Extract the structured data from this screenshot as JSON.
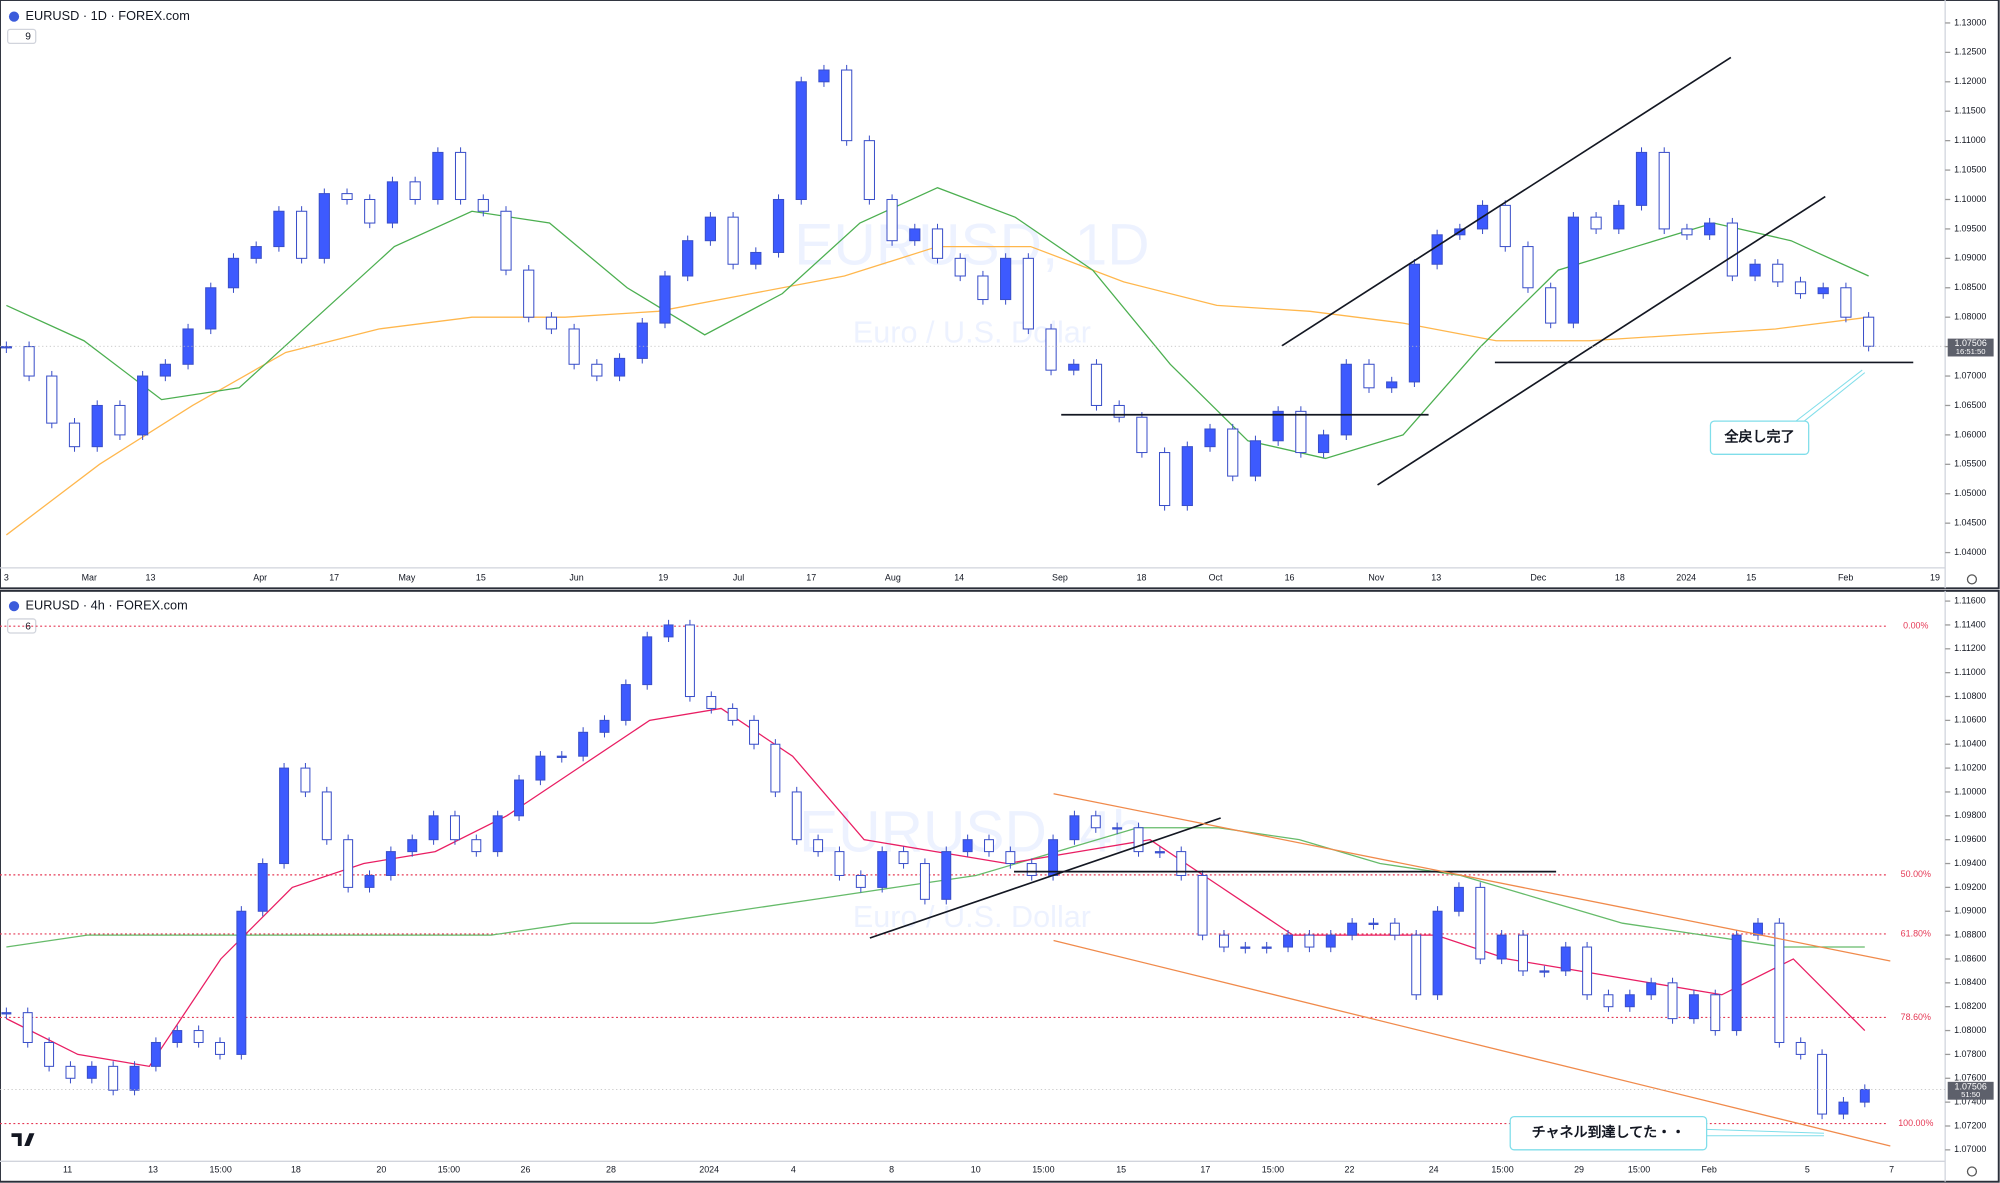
{
  "chart_data": [
    {
      "type": "candlestick",
      "header": "EURUSD · 1D · FOREX.com",
      "indicator_count": "9",
      "watermark": "EURUSD, 1D",
      "watermark_sub": "Euro / U.S. Dollar",
      "closes": [
        1.075,
        1.07,
        1.062,
        1.058,
        1.065,
        1.06,
        1.07,
        1.072,
        1.078,
        1.085,
        1.09,
        1.092,
        1.098,
        1.09,
        1.101,
        1.1,
        1.096,
        1.103,
        1.1,
        1.108,
        1.1,
        1.098,
        1.088,
        1.08,
        1.078,
        1.072,
        1.07,
        1.073,
        1.079,
        1.087,
        1.093,
        1.097,
        1.089,
        1.091,
        1.1,
        1.12,
        1.122,
        1.11,
        1.1,
        1.093,
        1.095,
        1.09,
        1.087,
        1.083,
        1.09,
        1.078,
        1.071,
        1.072,
        1.065,
        1.063,
        1.057,
        1.048,
        1.058,
        1.061,
        1.053,
        1.059,
        1.064,
        1.057,
        1.06,
        1.072,
        1.068,
        1.069,
        1.089,
        1.094,
        1.095,
        1.099,
        1.092,
        1.085,
        1.079,
        1.097,
        1.095,
        1.099,
        1.108,
        1.095,
        1.094,
        1.096,
        1.087,
        1.089,
        1.086,
        1.084,
        1.085,
        1.08,
        1.07506
      ],
      "ma_fast": [
        1.082,
        1.076,
        1.066,
        1.068,
        1.08,
        1.092,
        1.098,
        1.096,
        1.085,
        1.077,
        1.084,
        1.096,
        1.102,
        1.097,
        1.088,
        1.072,
        1.059,
        1.056,
        1.06,
        1.075,
        1.088,
        1.092,
        1.096,
        1.093,
        1.087
      ],
      "ma_slow": [
        1.043,
        1.055,
        1.065,
        1.074,
        1.078,
        1.08,
        1.08,
        1.081,
        1.084,
        1.087,
        1.092,
        1.092,
        1.086,
        1.082,
        1.081,
        1.079,
        1.076,
        1.076,
        1.077,
        1.078,
        1.08
      ],
      "up_color": "#3d5afe",
      "down_color": "#ffffff",
      "ma_fast_color": "#4caf50",
      "ma_slow_color": "#ffb74d",
      "ylim": [
        1.0374,
        1.1339
      ],
      "yticks": [
        {
          "value": 1.04,
          "label": "1.04000"
        },
        {
          "value": 1.045,
          "label": "1.04500"
        },
        {
          "value": 1.05,
          "label": "1.05000"
        },
        {
          "value": 1.055,
          "label": "1.05500"
        },
        {
          "value": 1.06,
          "label": "1.06000"
        },
        {
          "value": 1.065,
          "label": "1.06500"
        },
        {
          "value": 1.07,
          "label": "1.07000"
        },
        {
          "value": 1.075,
          "label": "1.07500"
        },
        {
          "value": 1.08,
          "label": "1.08000"
        },
        {
          "value": 1.085,
          "label": "1.08500"
        },
        {
          "value": 1.09,
          "label": "1.09000"
        },
        {
          "value": 1.095,
          "label": "1.09500"
        },
        {
          "value": 1.1,
          "label": "1.10000"
        },
        {
          "value": 1.105,
          "label": "1.10500"
        },
        {
          "value": 1.11,
          "label": "1.11000"
        },
        {
          "value": 1.115,
          "label": "1.11500"
        },
        {
          "value": 1.12,
          "label": "1.12000"
        },
        {
          "value": 1.125,
          "label": "1.12500"
        },
        {
          "value": 1.13,
          "label": "1.13000"
        }
      ],
      "xticks": [
        "3",
        "Mar",
        "13",
        "Apr",
        "17",
        "May",
        "15",
        "Jun",
        "19",
        "Jul",
        "17",
        "Aug",
        "14",
        "Sep",
        "18",
        "Oct",
        "16",
        "Nov",
        "13",
        "Dec",
        "18",
        "2024",
        "15",
        "Feb",
        "19"
      ],
      "last_price": 1.07506,
      "countdown": "16:51:50",
      "annotation": "全戻し完了"
    },
    {
      "type": "candlestick",
      "header": "EURUSD · 4h · FOREX.com",
      "indicator_count": "6",
      "watermark": "EURUSD, 4h",
      "watermark_sub": "Euro / U.S. Dollar",
      "closes": [
        1.0815,
        1.079,
        1.077,
        1.076,
        1.077,
        1.075,
        1.077,
        1.079,
        1.08,
        1.079,
        1.078,
        1.09,
        1.094,
        1.102,
        1.1,
        1.096,
        1.092,
        1.093,
        1.095,
        1.096,
        1.098,
        1.096,
        1.095,
        1.098,
        1.101,
        1.103,
        1.103,
        1.105,
        1.106,
        1.109,
        1.113,
        1.114,
        1.108,
        1.107,
        1.106,
        1.104,
        1.1,
        1.096,
        1.095,
        1.093,
        1.092,
        1.095,
        1.094,
        1.091,
        1.095,
        1.096,
        1.095,
        1.094,
        1.093,
        1.096,
        1.098,
        1.097,
        1.097,
        1.095,
        1.095,
        1.093,
        1.088,
        1.087,
        1.087,
        1.087,
        1.088,
        1.087,
        1.088,
        1.089,
        1.089,
        1.088,
        1.083,
        1.09,
        1.092,
        1.086,
        1.088,
        1.085,
        1.085,
        1.087,
        1.083,
        1.082,
        1.083,
        1.084,
        1.081,
        1.083,
        1.08,
        1.088,
        1.089,
        1.079,
        1.078,
        1.073,
        1.074,
        1.07506
      ],
      "ma_fast": [
        1.081,
        1.078,
        1.077,
        1.086,
        1.092,
        1.094,
        1.095,
        1.098,
        1.102,
        1.106,
        1.107,
        1.103,
        1.096,
        1.095,
        1.094,
        1.095,
        1.096,
        1.092,
        1.088,
        1.088,
        1.088,
        1.086,
        1.085,
        1.084,
        1.083,
        1.086,
        1.08
      ],
      "ma_slow": [
        1.087,
        1.088,
        1.088,
        1.088,
        1.088,
        1.088,
        1.088,
        1.089,
        1.089,
        1.09,
        1.091,
        1.092,
        1.093,
        1.095,
        1.097,
        1.097,
        1.096,
        1.094,
        1.093,
        1.091,
        1.089,
        1.088,
        1.087,
        1.087
      ],
      "up_color": "#3d5afe",
      "down_color": "#ffffff",
      "ma_fast_color": "#e91e63",
      "ma_slow_color": "#66bb6a",
      "ylim": [
        1.06904,
        1.11675
      ],
      "yticks": [
        {
          "value": 1.07,
          "label": "1.07000"
        },
        {
          "value": 1.072,
          "label": "1.07200"
        },
        {
          "value": 1.074,
          "label": "1.07400"
        },
        {
          "value": 1.076,
          "label": "1.07600"
        },
        {
          "value": 1.078,
          "label": "1.07800"
        },
        {
          "value": 1.08,
          "label": "1.08000"
        },
        {
          "value": 1.082,
          "label": "1.08200"
        },
        {
          "value": 1.084,
          "label": "1.08400"
        },
        {
          "value": 1.086,
          "label": "1.08600"
        },
        {
          "value": 1.088,
          "label": "1.08800"
        },
        {
          "value": 1.09,
          "label": "1.09000"
        },
        {
          "value": 1.092,
          "label": "1.09200"
        },
        {
          "value": 1.094,
          "label": "1.09400"
        },
        {
          "value": 1.096,
          "label": "1.09600"
        },
        {
          "value": 1.098,
          "label": "1.09800"
        },
        {
          "value": 1.1,
          "label": "1.10000"
        },
        {
          "value": 1.102,
          "label": "1.10200"
        },
        {
          "value": 1.104,
          "label": "1.10400"
        },
        {
          "value": 1.106,
          "label": "1.10600"
        },
        {
          "value": 1.108,
          "label": "1.10800"
        },
        {
          "value": 1.11,
          "label": "1.11000"
        },
        {
          "value": 1.112,
          "label": "1.11200"
        },
        {
          "value": 1.114,
          "label": "1.11400"
        },
        {
          "value": 1.116,
          "label": "1.11600"
        }
      ],
      "xticks": [
        "11",
        "13",
        "15:00",
        "18",
        "20",
        "15:00",
        "26",
        "28",
        "2024",
        "4",
        "8",
        "10",
        "15:00",
        "15",
        "17",
        "15:00",
        "22",
        "24",
        "15:00",
        "29",
        "15:00",
        "Feb",
        "5",
        "7"
      ],
      "fib_levels": [
        {
          "value": 1.1139,
          "label": "0.00%"
        },
        {
          "value": 1.09305,
          "label": "50.00%"
        },
        {
          "value": 1.0881,
          "label": "61.80%"
        },
        {
          "value": 1.0811,
          "label": "78.60%"
        },
        {
          "value": 1.0722,
          "label": "100.00%"
        }
      ],
      "fib_color": "#e53955",
      "last_price": 1.07506,
      "countdown": "51:50",
      "annotation": "チャネル到達してた・・"
    }
  ]
}
